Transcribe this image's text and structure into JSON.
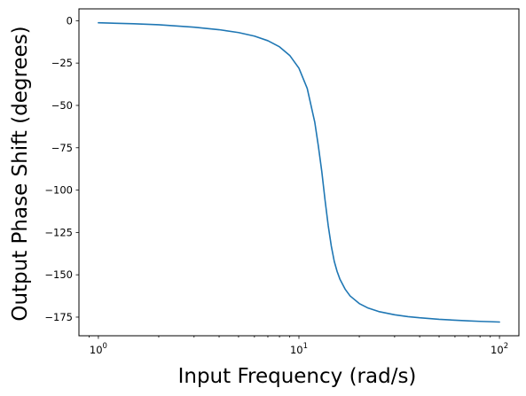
{
  "chart_data": {
    "type": "line",
    "title": "",
    "xlabel": "Input Frequency (rad/s)",
    "ylabel": "Output Phase Shift (degrees)",
    "x_scale": "log",
    "xlim": [
      0.8,
      125
    ],
    "ylim": [
      -186,
      7
    ],
    "grid": false,
    "legend": "none",
    "x_major_ticks": [
      {
        "value": 1,
        "base": "10",
        "exp": "0"
      },
      {
        "value": 10,
        "base": "10",
        "exp": "1"
      },
      {
        "value": 100,
        "base": "10",
        "exp": "2"
      }
    ],
    "y_ticks": [
      {
        "value": 0,
        "label": "0"
      },
      {
        "value": -25,
        "label": "−25"
      },
      {
        "value": -50,
        "label": "−50"
      },
      {
        "value": -75,
        "label": "−75"
      },
      {
        "value": -100,
        "label": "−100"
      },
      {
        "value": -125,
        "label": "−125"
      },
      {
        "value": -150,
        "label": "−150"
      },
      {
        "value": -175,
        "label": "−175"
      }
    ],
    "series": [
      {
        "color": "#1f77b4",
        "x": [
          1,
          1.5,
          2,
          3,
          4,
          5,
          6,
          7,
          8,
          9,
          10,
          11,
          12,
          12.5,
          13,
          13.5,
          14,
          14.5,
          15,
          15.5,
          16,
          17,
          18,
          20,
          22,
          25,
          30,
          35,
          40,
          50,
          60,
          70,
          80,
          90,
          100
        ],
        "y": [
          -1.2,
          -1.8,
          -2.4,
          -3.8,
          -5.3,
          -7.0,
          -9.1,
          -11.8,
          -15.4,
          -20.5,
          -28,
          -40,
          -60,
          -74,
          -89,
          -106,
          -121,
          -133,
          -142,
          -148,
          -152.5,
          -158.5,
          -162.5,
          -167,
          -169.5,
          -171.7,
          -173.6,
          -174.7,
          -175.4,
          -176.3,
          -176.8,
          -177.2,
          -177.5,
          -177.7,
          -177.9
        ]
      }
    ]
  }
}
